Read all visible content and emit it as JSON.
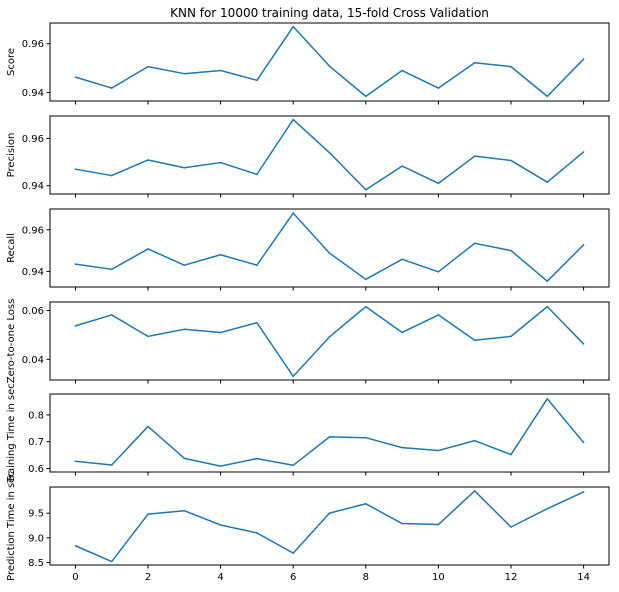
{
  "chart_data": {
    "type": "line",
    "title": "KNN for 10000 training data, 15-fold Cross Validation",
    "line_color": "#1f77b4",
    "x": [
      0,
      1,
      2,
      3,
      4,
      5,
      6,
      7,
      8,
      9,
      10,
      11,
      12,
      13,
      14
    ],
    "xlim": [
      -0.7,
      14.7
    ],
    "xticks": [
      "0",
      "2",
      "4",
      "6",
      "8",
      "10",
      "12",
      "14"
    ],
    "xtick_values": [
      0,
      2,
      4,
      6,
      8,
      10,
      12,
      14
    ],
    "subplots": [
      {
        "ylabel": "Score",
        "ylim": [
          0.9365,
          0.9685
        ],
        "yticks": [
          "0.94",
          "0.96"
        ],
        "ytick_values": [
          0.94,
          0.96
        ],
        "values": [
          0.9463,
          0.9418,
          0.9506,
          0.9477,
          0.949,
          0.945,
          0.967,
          0.9508,
          0.9384,
          0.949,
          0.9418,
          0.9522,
          0.9506,
          0.9384,
          0.9537
        ]
      },
      {
        "ylabel": "Precision",
        "ylim": [
          0.9365,
          0.9695
        ],
        "yticks": [
          "0.94",
          "0.96"
        ],
        "ytick_values": [
          0.94,
          0.96
        ],
        "values": [
          0.947,
          0.9443,
          0.9509,
          0.9476,
          0.9498,
          0.9448,
          0.968,
          0.954,
          0.9383,
          0.9483,
          0.941,
          0.9525,
          0.9507,
          0.9415,
          0.9543
        ]
      },
      {
        "ylabel": "Recall",
        "ylim": [
          0.9325,
          0.97
        ],
        "yticks": [
          "0.94",
          "0.96"
        ],
        "ytick_values": [
          0.94,
          0.96
        ],
        "values": [
          0.9435,
          0.941,
          0.9508,
          0.943,
          0.948,
          0.943,
          0.968,
          0.9488,
          0.9362,
          0.9458,
          0.9398,
          0.9535,
          0.95,
          0.9353,
          0.9528
        ]
      },
      {
        "ylabel": "Zero-to-one Loss",
        "ylim": [
          0.0315,
          0.0635
        ],
        "yticks": [
          "0.04",
          "0.06"
        ],
        "ytick_values": [
          0.04,
          0.06
        ],
        "values": [
          0.0537,
          0.0582,
          0.0494,
          0.0523,
          0.051,
          0.055,
          0.033,
          0.0492,
          0.0616,
          0.051,
          0.0582,
          0.0478,
          0.0494,
          0.0616,
          0.0463
        ]
      },
      {
        "ylabel": "Training Time in sec",
        "ylim": [
          0.587,
          0.878
        ],
        "yticks": [
          "0.6",
          "0.7",
          "0.8"
        ],
        "ytick_values": [
          0.6,
          0.7,
          0.8
        ],
        "values": [
          0.627,
          0.613,
          0.757,
          0.638,
          0.609,
          0.637,
          0.612,
          0.718,
          0.715,
          0.678,
          0.667,
          0.704,
          0.652,
          0.86,
          0.697
        ]
      },
      {
        "ylabel": "Prediction Time in sec",
        "ylim": [
          8.45,
          10.03
        ],
        "yticks": [
          "8.5",
          "9.0",
          "9.5"
        ],
        "ytick_values": [
          8.5,
          9.0,
          9.5
        ],
        "values": [
          8.84,
          8.52,
          9.48,
          9.55,
          9.26,
          9.1,
          8.69,
          9.5,
          9.69,
          9.29,
          9.27,
          9.95,
          9.22,
          9.59,
          9.93
        ]
      }
    ]
  }
}
